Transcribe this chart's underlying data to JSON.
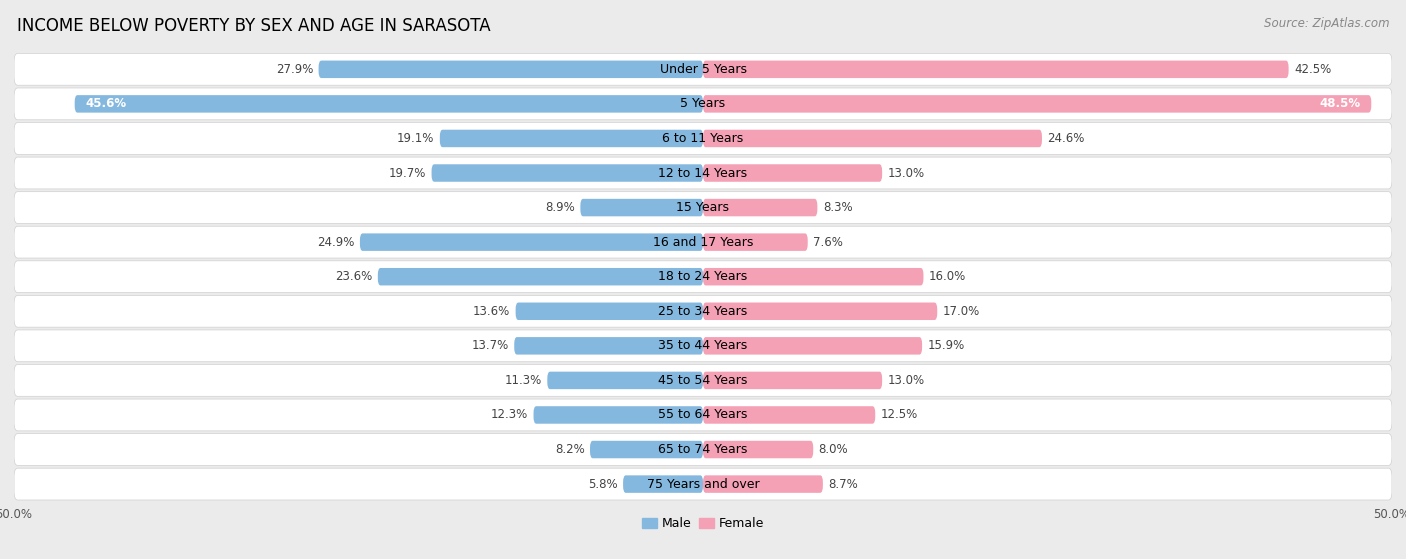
{
  "title": "INCOME BELOW POVERTY BY SEX AND AGE IN SARASOTA",
  "source": "Source: ZipAtlas.com",
  "categories": [
    "Under 5 Years",
    "5 Years",
    "6 to 11 Years",
    "12 to 14 Years",
    "15 Years",
    "16 and 17 Years",
    "18 to 24 Years",
    "25 to 34 Years",
    "35 to 44 Years",
    "45 to 54 Years",
    "55 to 64 Years",
    "65 to 74 Years",
    "75 Years and over"
  ],
  "male": [
    27.9,
    45.6,
    19.1,
    19.7,
    8.9,
    24.9,
    23.6,
    13.6,
    13.7,
    11.3,
    12.3,
    8.2,
    5.8
  ],
  "female": [
    42.5,
    48.5,
    24.6,
    13.0,
    8.3,
    7.6,
    16.0,
    17.0,
    15.9,
    13.0,
    12.5,
    8.0,
    8.7
  ],
  "male_color": "#85b8de",
  "female_color": "#f4a0b5",
  "male_label": "Male",
  "female_label": "Female",
  "axis_max": 50.0,
  "background_color": "#ebebeb",
  "bar_background": "#ffffff",
  "title_fontsize": 12,
  "cat_fontsize": 9,
  "value_fontsize": 8.5,
  "source_fontsize": 8.5,
  "legend_fontsize": 9
}
